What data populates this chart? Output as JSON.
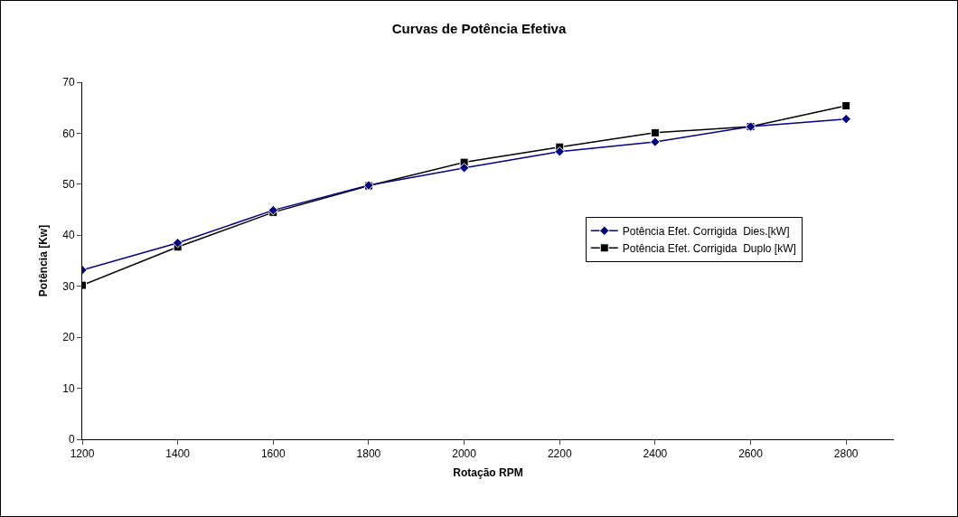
{
  "chart_data": {
    "type": "line",
    "title": "Curvas de Potência Efetiva",
    "xlabel": "Rotação RPM",
    "ylabel": "Potência [Kw]",
    "x": [
      1200,
      1400,
      1600,
      1800,
      2000,
      2200,
      2400,
      2600,
      2800
    ],
    "series": [
      {
        "name": "Potência Efet. Corrigida  Dies.[kW]",
        "color": "#000080",
        "marker": "diamond",
        "values": [
          33.2,
          38.5,
          44.9,
          49.8,
          53.2,
          56.4,
          58.3,
          61.3,
          62.8
        ]
      },
      {
        "name": "Potência Efet. Corrigida  Duplo [kW]",
        "color": "#000000",
        "marker": "square",
        "values": [
          30.2,
          37.7,
          44.5,
          49.7,
          54.3,
          57.3,
          60.1,
          61.3,
          65.4
        ]
      }
    ],
    "xlim": [
      1200,
      2900
    ],
    "xticks": [
      1200,
      1400,
      1600,
      1800,
      2000,
      2200,
      2400,
      2600,
      2800
    ],
    "ylim": [
      0,
      70
    ],
    "yticks": [
      0,
      10,
      20,
      30,
      40,
      50,
      60,
      70
    ],
    "grid": false,
    "legend": "right",
    "line_style": "solid"
  }
}
